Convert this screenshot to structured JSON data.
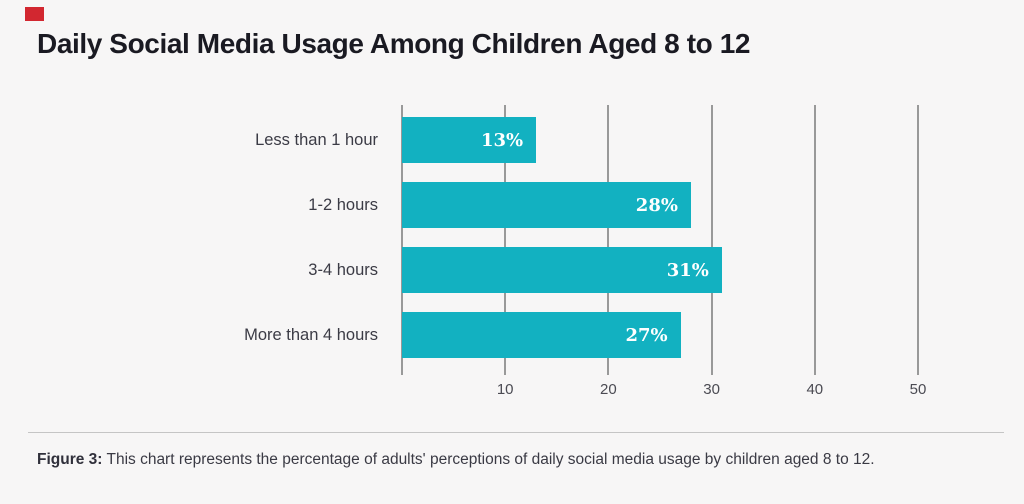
{
  "page": {
    "background": "#f7f6f6"
  },
  "decoration": {
    "corner_mark_color": "#d22730"
  },
  "title": "Daily Social Media Usage Among Children Aged 8 to 12",
  "chart_data": {
    "type": "bar",
    "orientation": "horizontal",
    "title": "Daily Social Media Usage Among Children Aged 8 to 12",
    "categories": [
      "Less than 1 hour",
      "1-2 hours",
      "3-4 hours",
      "More than 4 hours"
    ],
    "values": [
      13,
      28,
      31,
      27
    ],
    "value_labels": [
      "13%",
      "28%",
      "31%",
      "27%"
    ],
    "xlabel": "",
    "ylabel": "",
    "xlim": [
      0,
      50
    ],
    "x_ticks": [
      0,
      10,
      20,
      30,
      40,
      50
    ],
    "x_tick_labels": [
      "",
      "10",
      "20",
      "30",
      "40",
      "50"
    ],
    "grid": "vertical gridlines only",
    "legend": "none",
    "bar_color": "#12b1c1",
    "gridline_color": "#999999",
    "value_label_color": "#ffffff",
    "category_label_color": "#3b3b45",
    "tick_label_color": "#4b4b53"
  },
  "caption": {
    "label": "Figure 3:",
    "text": " This chart represents the percentage of adults' perceptions of daily social media usage by children aged 8 to 12."
  }
}
